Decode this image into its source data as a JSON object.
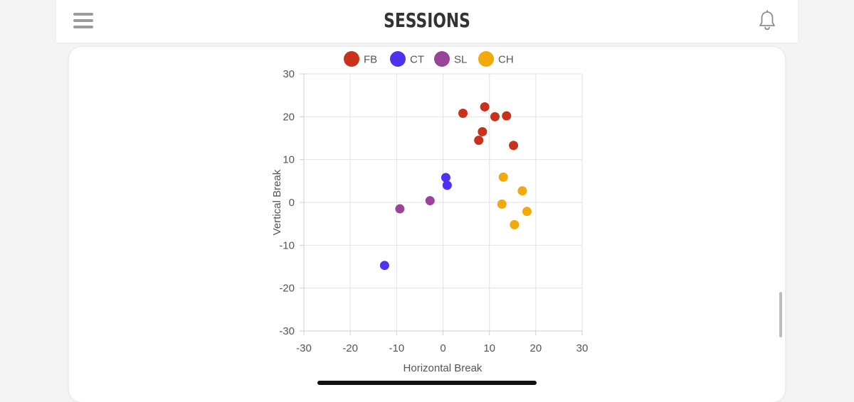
{
  "header": {
    "title": "SESSIONS",
    "menu_icon": "hamburger-menu-icon",
    "notification_icon": "bell-icon"
  },
  "chart_data": {
    "type": "scatter",
    "xlabel": "Horizontal Break",
    "ylabel": "Vertical Break",
    "xlim": [
      -30,
      30
    ],
    "ylim": [
      -30,
      30
    ],
    "x_ticks": [
      -30,
      -20,
      -10,
      0,
      10,
      20,
      30
    ],
    "y_ticks": [
      -30,
      -20,
      -10,
      0,
      10,
      20,
      30
    ],
    "grid": true,
    "legend_position": "top-center",
    "series": [
      {
        "name": "FB",
        "color": "#c8321c",
        "points": [
          [
            4.3,
            20.8
          ],
          [
            9.0,
            22.3
          ],
          [
            11.2,
            20.0
          ],
          [
            13.7,
            20.2
          ],
          [
            8.5,
            16.5
          ],
          [
            7.7,
            14.5
          ],
          [
            15.2,
            13.3
          ]
        ]
      },
      {
        "name": "CT",
        "color": "#4b33f0",
        "points": [
          [
            0.6,
            5.8
          ],
          [
            0.9,
            4.0
          ],
          [
            -12.6,
            -14.7
          ]
        ]
      },
      {
        "name": "SL",
        "color": "#9a4499",
        "points": [
          [
            -2.8,
            0.4
          ],
          [
            -9.3,
            -1.5
          ]
        ]
      },
      {
        "name": "CH",
        "color": "#f2a90c",
        "points": [
          [
            13.0,
            5.9
          ],
          [
            17.1,
            2.7
          ],
          [
            12.7,
            -0.4
          ],
          [
            18.1,
            -2.1
          ],
          [
            15.4,
            -5.2
          ]
        ]
      }
    ]
  }
}
